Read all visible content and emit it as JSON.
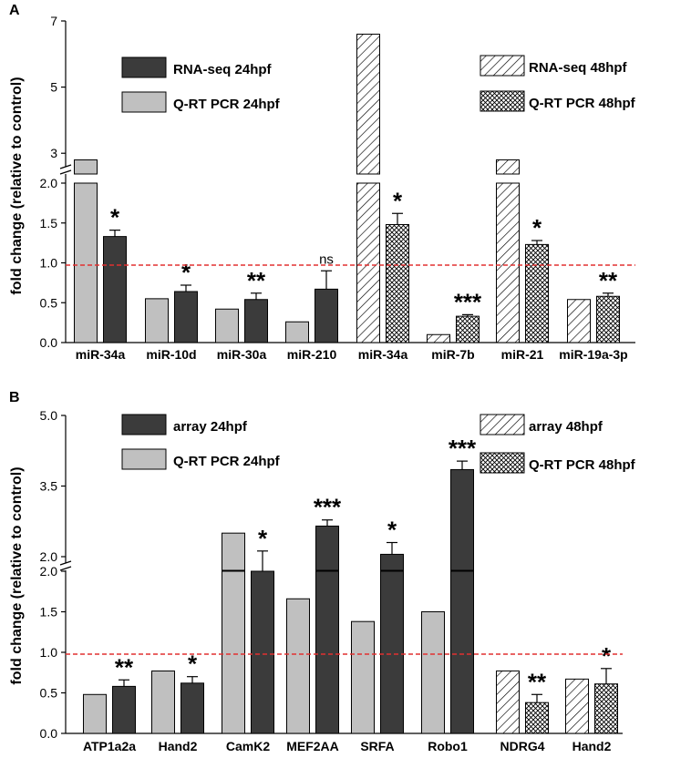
{
  "colors": {
    "dark_bar": "#3b3b3b",
    "light_bar": "#c0c0c0",
    "threshold_line": "#e23030",
    "axis": "#000000"
  },
  "chart_data": [
    {
      "panel_label": "A",
      "type": "bar",
      "ylabel": "fold change (relative to control)",
      "reference_line": 1.0,
      "y_upper_ticks": [
        "3",
        "5",
        "7"
      ],
      "y_lower_ticks": [
        "0.0",
        "0.5",
        "1.0",
        "1.5",
        "2.0"
      ],
      "ylim_lower": [
        0,
        2.0
      ],
      "ylim_upper": [
        2.4,
        7
      ],
      "legend": [
        {
          "label": "RNA-seq  24hpf",
          "fill": "dark"
        },
        {
          "label": "Q-RT PCR  24hpf",
          "fill": "light"
        },
        {
          "label": "RNA-seq  48hpf",
          "fill": "hatch"
        },
        {
          "label": "Q-RT PCR  48hpf",
          "fill": "cross"
        }
      ],
      "categories": [
        {
          "label": "miR-34a",
          "bars": [
            {
              "fill": "light",
              "value": 2.8
            },
            {
              "fill": "dark",
              "value": 1.33,
              "err": 0.08,
              "sig": "*"
            }
          ]
        },
        {
          "label": "miR-10d",
          "bars": [
            {
              "fill": "light",
              "value": 0.55
            },
            {
              "fill": "dark",
              "value": 0.64,
              "err": 0.08,
              "sig": "*"
            }
          ]
        },
        {
          "label": "miR-30a",
          "bars": [
            {
              "fill": "light",
              "value": 0.42
            },
            {
              "fill": "dark",
              "value": 0.54,
              "err": 0.08,
              "sig": "**"
            }
          ]
        },
        {
          "label": "miR-210",
          "bars": [
            {
              "fill": "light",
              "value": 0.26
            },
            {
              "fill": "dark",
              "value": 0.67,
              "err": 0.23,
              "sig": "ns"
            }
          ]
        },
        {
          "label": "miR-34a",
          "bars": [
            {
              "fill": "hatch",
              "value": 6.6
            },
            {
              "fill": "cross",
              "value": 1.48,
              "err": 0.14,
              "sig": "*"
            }
          ]
        },
        {
          "label": "miR-7b",
          "bars": [
            {
              "fill": "hatch",
              "value": 0.1
            },
            {
              "fill": "cross",
              "value": 0.33,
              "err": 0.02,
              "sig": "***"
            }
          ]
        },
        {
          "label": "miR-21",
          "bars": [
            {
              "fill": "hatch",
              "value": 2.8
            },
            {
              "fill": "cross",
              "value": 1.23,
              "err": 0.05,
              "sig": "*"
            }
          ]
        },
        {
          "label": "miR-19a-3p",
          "bars": [
            {
              "fill": "hatch",
              "value": 0.54
            },
            {
              "fill": "cross",
              "value": 0.58,
              "err": 0.04,
              "sig": "**"
            }
          ]
        }
      ]
    },
    {
      "panel_label": "B",
      "type": "bar",
      "ylabel": "fold change (relative to control)",
      "reference_line": 1.0,
      "y_upper_ticks": [
        "2.0",
        "3.5",
        "5.0"
      ],
      "y_lower_ticks": [
        "0.0",
        "0.5",
        "1.0",
        "1.5",
        "2.0"
      ],
      "ylim_lower": [
        0,
        2.0
      ],
      "ylim_upper": [
        2.0,
        5.0
      ],
      "legend": [
        {
          "label": "array  24hpf",
          "fill": "dark"
        },
        {
          "label": "Q-RT PCR  24hpf",
          "fill": "light"
        },
        {
          "label": "array  48hpf",
          "fill": "hatch"
        },
        {
          "label": "Q-RT PCR  48hpf",
          "fill": "cross"
        }
      ],
      "categories": [
        {
          "label": "ATP1a2a",
          "bars": [
            {
              "fill": "light",
              "value": 0.48
            },
            {
              "fill": "dark",
              "value": 0.58,
              "err": 0.08,
              "sig": "**"
            }
          ]
        },
        {
          "label": "Hand2",
          "bars": [
            {
              "fill": "light",
              "value": 0.77
            },
            {
              "fill": "dark",
              "value": 0.62,
              "err": 0.08,
              "sig": "*"
            }
          ]
        },
        {
          "label": "CamK2",
          "bars": [
            {
              "fill": "light",
              "value": 2.5
            },
            {
              "fill": "dark",
              "value": 2.0,
              "err": 0.12,
              "sig": "*"
            }
          ]
        },
        {
          "label": "MEF2AA",
          "bars": [
            {
              "fill": "light",
              "value": 1.66
            },
            {
              "fill": "dark",
              "value": 2.65,
              "err": 0.13,
              "sig": "***"
            }
          ]
        },
        {
          "label": "SRFA",
          "bars": [
            {
              "fill": "light",
              "value": 1.38
            },
            {
              "fill": "dark",
              "value": 2.05,
              "err": 0.25,
              "sig": "*"
            }
          ]
        },
        {
          "label": "Robo1",
          "bars": [
            {
              "fill": "light",
              "value": 1.5
            },
            {
              "fill": "dark",
              "value": 3.85,
              "err": 0.18,
              "sig": "***"
            }
          ]
        },
        {
          "label": "NDRG4",
          "bars": [
            {
              "fill": "hatch",
              "value": 0.77
            },
            {
              "fill": "cross",
              "value": 0.38,
              "err": 0.1,
              "sig": "**"
            }
          ]
        },
        {
          "label": "Hand2",
          "bars": [
            {
              "fill": "hatch",
              "value": 0.67
            },
            {
              "fill": "cross",
              "value": 0.61,
              "err": 0.19,
              "sig": "*"
            }
          ]
        }
      ]
    }
  ]
}
